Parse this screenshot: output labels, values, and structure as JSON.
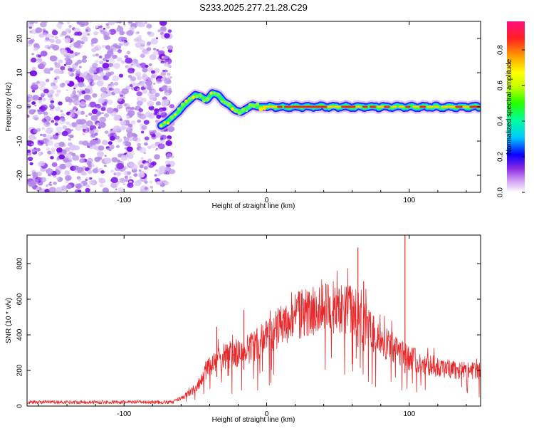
{
  "title": "S233.2025.277.21.28.C29",
  "colors": {
    "snr_line": "#e8282a",
    "frame": "#000000",
    "noise_light": "#dcc8f6",
    "noise_mid": "#b48ae8",
    "noise_dark": "#7a10e8"
  },
  "chart_data": [
    {
      "type": "heatmap",
      "title": "S233.2025.277.21.28.C29",
      "xlabel": "Height of straight line (km)",
      "ylabel": "Frequency (Hz)",
      "xlim": [
        -168,
        150
      ],
      "ylim": [
        -25,
        25
      ],
      "xticks": [
        -100,
        0,
        100
      ],
      "xtick_labels": [
        "-100",
        "0",
        "100"
      ],
      "yticks": [
        -20,
        -10,
        0,
        10,
        20
      ],
      "ytick_labels": [
        "-20",
        "-10",
        "0",
        "10",
        "20"
      ],
      "noise_region_x": [
        -168,
        -66
      ],
      "trace": {
        "x": [
          -74,
          -70,
          -66,
          -62,
          -58,
          -54,
          -50,
          -46,
          -42,
          -38,
          -34,
          -30,
          -26,
          -22,
          -18,
          -14,
          -10,
          -6,
          -2,
          0,
          150
        ],
        "y": [
          -5.5,
          -4.5,
          -3.0,
          -1.5,
          0.5,
          2.0,
          3.5,
          3.0,
          2.0,
          4.0,
          3.5,
          1.5,
          0.5,
          -1.0,
          -1.5,
          -0.5,
          0.5,
          0.0,
          0.0,
          0.0,
          0.0
        ]
      },
      "colorbar": {
        "label": "Normalized spectral amplitude",
        "range": [
          0,
          0.96
        ],
        "ticks": [
          0.0,
          0.2,
          0.4,
          0.6,
          0.8
        ],
        "tick_labels": [
          "0.0",
          "0.2",
          "0.4",
          "0.6",
          "0.8"
        ]
      }
    },
    {
      "type": "line",
      "xlabel": "Height of straight line (km)",
      "ylabel": "SNR (10 * v/v)",
      "xlim": [
        -168,
        150
      ],
      "ylim": [
        0,
        960
      ],
      "xticks": [
        -100,
        0,
        100
      ],
      "xtick_labels": [
        "-100",
        "0",
        "100"
      ],
      "yticks": [
        0,
        200,
        400,
        600,
        800
      ],
      "ytick_labels": [
        "0",
        "200",
        "400",
        "600",
        "800"
      ],
      "series": [
        {
          "name": "SNR",
          "envelope_x": [
            -168,
            -80,
            -70,
            -60,
            -50,
            -45,
            -42,
            -38,
            -30,
            -25,
            -20,
            -10,
            0,
            10,
            20,
            30,
            40,
            50,
            60,
            65,
            70,
            75,
            80,
            90,
            100,
            110,
            120,
            130,
            140,
            150
          ],
          "envelope_y": [
            20,
            20,
            25,
            40,
            90,
            150,
            200,
            220,
            260,
            270,
            280,
            310,
            360,
            420,
            470,
            500,
            510,
            510,
            500,
            470,
            420,
            380,
            340,
            300,
            250,
            220,
            200,
            190,
            185,
            180
          ],
          "spikes": [
            {
              "x": -35,
              "y": 445
            },
            {
              "x": -16,
              "y": 540
            },
            {
              "x": 64,
              "y": 890
            },
            {
              "x": 68,
              "y": 700
            },
            {
              "x": 97,
              "y": 960
            }
          ]
        }
      ]
    }
  ]
}
